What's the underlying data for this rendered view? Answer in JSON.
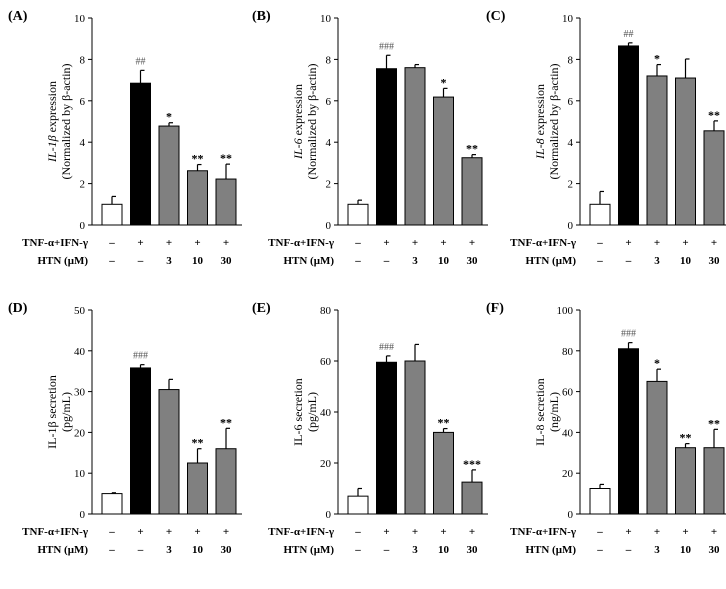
{
  "colors": {
    "control": "#ffffff",
    "stimulated": "#000000",
    "treated": "#808080",
    "axis": "#000000"
  },
  "conditions": {
    "row1_label": "TNF-α+IFN-γ",
    "row2_label": "HTN (μM)",
    "row1": [
      "–",
      "+",
      "+",
      "+",
      "+"
    ],
    "row2": [
      "–",
      "–",
      "3",
      "10",
      "30"
    ]
  },
  "chart_data": [
    {
      "type": "bar",
      "panel": "(A)",
      "ylabel_gene": "IL-1β",
      "ylabel_rest": " expression",
      "ylabel_line2": "(Normalized by β-actin)",
      "ylim": [
        0,
        10
      ],
      "yticks": [
        "0",
        "2",
        "4",
        "6",
        "8",
        "10"
      ],
      "values": [
        1.0,
        6.85,
        4.78,
        2.62,
        2.22
      ],
      "errors": [
        0.38,
        0.62,
        0.16,
        0.3,
        0.72
      ],
      "significance": [
        "",
        "##",
        "*",
        "**",
        "**"
      ]
    },
    {
      "type": "bar",
      "panel": "(B)",
      "ylabel_gene": "IL-6",
      "ylabel_rest": " expression",
      "ylabel_line2": "(Normalized by β-actin)",
      "ylim": [
        0,
        10
      ],
      "yticks": [
        "0",
        "2",
        "4",
        "6",
        "8",
        "10"
      ],
      "values": [
        1.0,
        7.55,
        7.6,
        6.18,
        3.25
      ],
      "errors": [
        0.2,
        0.65,
        0.15,
        0.42,
        0.15
      ],
      "significance": [
        "",
        "###",
        "",
        "*",
        "**"
      ]
    },
    {
      "type": "bar",
      "panel": "(C)",
      "ylabel_gene": "IL-8",
      "ylabel_rest": " expression",
      "ylabel_line2": "(Normalized by β-actin)",
      "ylim": [
        0,
        10
      ],
      "yticks": [
        "0",
        "2",
        "4",
        "6",
        "8",
        "10"
      ],
      "values": [
        1.0,
        8.65,
        7.2,
        7.1,
        4.55
      ],
      "errors": [
        0.62,
        0.15,
        0.55,
        0.92,
        0.48
      ],
      "significance": [
        "",
        "##",
        "*",
        "",
        "**"
      ]
    },
    {
      "type": "bar",
      "panel": "(D)",
      "ylabel_gene": "",
      "ylabel_rest": "IL-1β  secretion",
      "ylabel_line2": "(pg/mL)",
      "ylim": [
        0,
        50
      ],
      "yticks": [
        "0",
        "10",
        "20",
        "30",
        "40",
        "50"
      ],
      "values": [
        5.0,
        35.8,
        30.5,
        12.5,
        16.0
      ],
      "errors": [
        0.2,
        0.8,
        2.5,
        3.5,
        5.0
      ],
      "significance": [
        "",
        "###",
        "",
        "**",
        "**"
      ]
    },
    {
      "type": "bar",
      "panel": "(E)",
      "ylabel_gene": "",
      "ylabel_rest": "IL-6 secretion",
      "ylabel_line2": "(pg/mL)",
      "ylim": [
        0,
        80
      ],
      "yticks": [
        "0",
        "20",
        "40",
        "60",
        "80"
      ],
      "values": [
        7.0,
        59.5,
        60.0,
        32.0,
        12.5
      ],
      "errors": [
        3.0,
        2.5,
        6.5,
        1.5,
        4.8
      ],
      "significance": [
        "",
        "###",
        "",
        "**",
        "***"
      ]
    },
    {
      "type": "bar",
      "panel": "(F)",
      "ylabel_gene": "",
      "ylabel_rest": "IL-8 secretion",
      "ylabel_line2": "(ng/mL)",
      "ylim": [
        0,
        100
      ],
      "yticks": [
        "0",
        "20",
        "40",
        "60",
        "80",
        "100"
      ],
      "values": [
        12.5,
        81.0,
        65.0,
        32.5,
        32.5
      ],
      "errors": [
        2.0,
        3.0,
        6.0,
        2.0,
        9.0
      ],
      "significance": [
        "",
        "###",
        "*",
        "**",
        "**"
      ]
    }
  ]
}
